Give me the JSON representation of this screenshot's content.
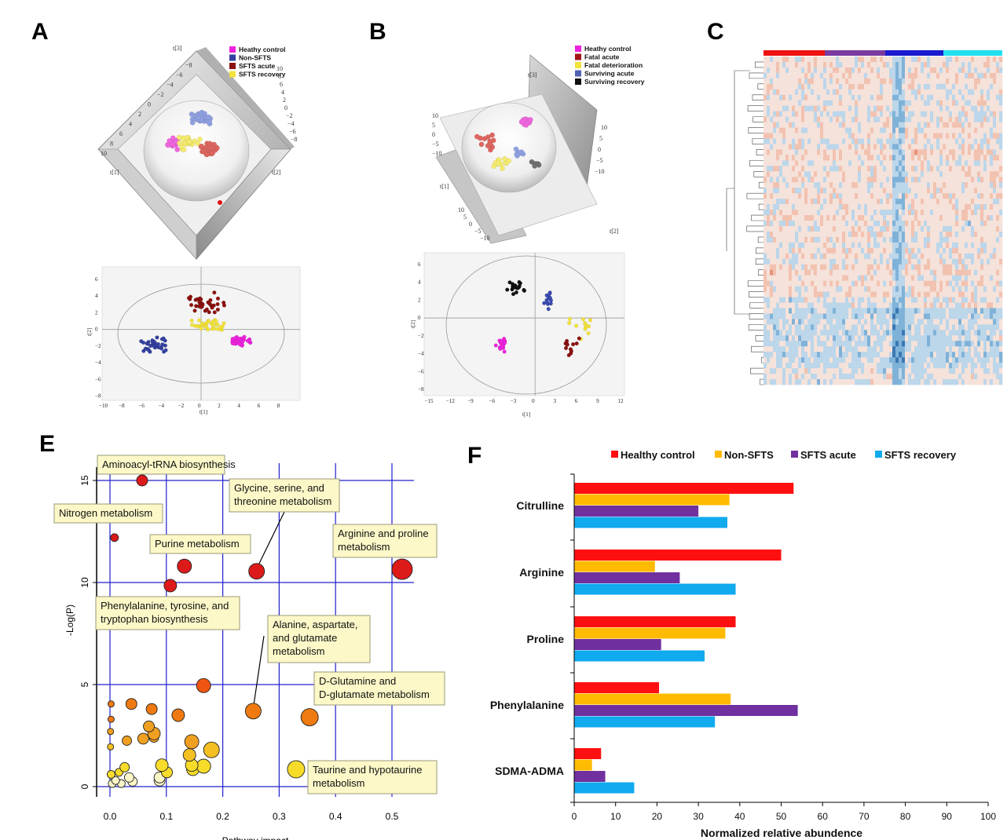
{
  "panel_labels": {
    "A": "A",
    "B": "B",
    "C": "C",
    "E": "E",
    "F": "F"
  },
  "colors": {
    "healthy": "#ee22dd",
    "nonsfts": "#3340a0",
    "acute": "#8c1010",
    "recovery": "#f2e23a",
    "black": "#111111",
    "f_healthy": "#ff1010",
    "f_non": "#ffbb00",
    "f_acute": "#7030a0",
    "f_recovery": "#10aaee",
    "e_grid": "#2020cc"
  },
  "panel_a": {
    "legend": [
      "Heathy control",
      "Non-SFTS",
      "SFTS acute",
      "SFTS recovery"
    ],
    "axis3d": {
      "t1": "t[1]",
      "t2": "t[2]",
      "t3": "t[3]"
    },
    "scatter": {
      "xticks": [
        "−10",
        "−8",
        "−6",
        "−4",
        "−2",
        "0",
        "2",
        "4",
        "6",
        "8"
      ],
      "yticks": [
        "6",
        "4",
        "2",
        "0",
        "−2",
        "−4",
        "−6",
        "−8"
      ],
      "xlabel": "t[1]",
      "ylabel": "t[2]"
    }
  },
  "panel_b": {
    "legend": [
      "Heathy control",
      "Fatal acute",
      "Fatal deterioration",
      "Surviving acute",
      "Surviving recovery"
    ],
    "axis3d": {
      "t1": "t[1]",
      "t2": "t[2]",
      "t3": "t[3]"
    },
    "scatter": {
      "xticks": [
        "−15",
        "−12",
        "−9",
        "−6",
        "−3",
        "0",
        "3",
        "6",
        "9",
        "12"
      ],
      "yticks": [
        "6",
        "4",
        "2",
        "0",
        "−2",
        "−4",
        "−6",
        "−8"
      ],
      "xlabel": "t[1]",
      "ylabel": "t[2]"
    }
  },
  "panel_c": {
    "group_bar_colors": [
      "#ee1111",
      "#7a3aa0",
      "#1a1ad0",
      "#22dfee"
    ]
  },
  "chart_data": [
    {
      "type": "scatter",
      "panel": "E",
      "xlabel": "Pathway impact",
      "ylabel": "-Log(P)",
      "xlim": [
        -0.02,
        0.55
      ],
      "ylim": [
        -0.7,
        16
      ],
      "xticks": [
        "0.0",
        "0.1",
        "0.2",
        "0.3",
        "0.4",
        "0.5"
      ],
      "yticks": [
        "0",
        "5",
        "10",
        "15"
      ],
      "points": [
        {
          "x": 0.057,
          "y": 15.0,
          "size": 7
        },
        {
          "x": 0.008,
          "y": 12.2,
          "size": 5
        },
        {
          "x": 0.132,
          "y": 10.8,
          "size": 9
        },
        {
          "x": 0.107,
          "y": 9.85,
          "size": 8
        },
        {
          "x": 0.26,
          "y": 10.55,
          "size": 10
        },
        {
          "x": 0.518,
          "y": 10.65,
          "size": 13
        },
        {
          "x": 0.166,
          "y": 4.95,
          "size": 9
        },
        {
          "x": 0.254,
          "y": 3.7,
          "size": 10
        },
        {
          "x": 0.354,
          "y": 3.4,
          "size": 11
        },
        {
          "x": 0.002,
          "y": 4.05,
          "size": 4
        },
        {
          "x": 0.038,
          "y": 4.05,
          "size": 7
        },
        {
          "x": 0.074,
          "y": 3.8,
          "size": 7
        },
        {
          "x": 0.121,
          "y": 3.5,
          "size": 8
        },
        {
          "x": 0.002,
          "y": 3.3,
          "size": 4
        },
        {
          "x": 0.069,
          "y": 2.95,
          "size": 7
        },
        {
          "x": 0.078,
          "y": 2.6,
          "size": 8
        },
        {
          "x": 0.059,
          "y": 2.35,
          "size": 7
        },
        {
          "x": 0.078,
          "y": 2.4,
          "size": 6
        },
        {
          "x": 0.001,
          "y": 2.7,
          "size": 4
        },
        {
          "x": 0.145,
          "y": 2.2,
          "size": 9
        },
        {
          "x": 0.18,
          "y": 1.8,
          "size": 10
        },
        {
          "x": 0.03,
          "y": 2.25,
          "size": 6
        },
        {
          "x": 0.141,
          "y": 1.55,
          "size": 8
        },
        {
          "x": 0.001,
          "y": 1.95,
          "size": 4
        },
        {
          "x": 0.092,
          "y": 1.05,
          "size": 8
        },
        {
          "x": 0.145,
          "y": 1.05,
          "size": 8
        },
        {
          "x": 0.166,
          "y": 1.0,
          "size": 9
        },
        {
          "x": 0.147,
          "y": 0.85,
          "size": 8
        },
        {
          "x": 0.026,
          "y": 0.95,
          "size": 6
        },
        {
          "x": 0.016,
          "y": 0.7,
          "size": 5
        },
        {
          "x": 0.101,
          "y": 0.7,
          "size": 7
        },
        {
          "x": 0.002,
          "y": 0.6,
          "size": 5
        },
        {
          "x": 0.33,
          "y": 0.85,
          "size": 11
        },
        {
          "x": 0.034,
          "y": 0.45,
          "size": 6
        },
        {
          "x": 0.088,
          "y": 0.45,
          "size": 7
        },
        {
          "x": 0.088,
          "y": 0.3,
          "size": 7
        },
        {
          "x": 0.01,
          "y": 0.3,
          "size": 5
        },
        {
          "x": 0.04,
          "y": 0.25,
          "size": 6
        },
        {
          "x": 0.004,
          "y": 0.15,
          "size": 5
        },
        {
          "x": 0.02,
          "y": 0.15,
          "size": 5
        }
      ],
      "annotations": [
        {
          "lines": [
            "Aminoacyl-tRNA biosynthesis"
          ]
        },
        {
          "lines": [
            "Nitrogen metabolism"
          ]
        },
        {
          "lines": [
            "Glycine, serine, and",
            "threonine metabolism"
          ]
        },
        {
          "lines": [
            "Purine metabolism"
          ]
        },
        {
          "lines": [
            "Arginine and proline",
            "metabolism"
          ]
        },
        {
          "lines": [
            "Phenylalanine, tyrosine, and",
            "tryptophan biosynthesis"
          ]
        },
        {
          "lines": [
            "Alanine, aspartate,",
            "and glutamate",
            "metabolism"
          ]
        },
        {
          "lines": [
            "D-Glutamine and",
            "D-glutamate metabolism"
          ]
        },
        {
          "lines": [
            "Taurine and hypotaurine",
            "metabolism"
          ]
        }
      ]
    },
    {
      "type": "bar",
      "panel": "F",
      "orientation": "horizontal",
      "categories": [
        "Citrulline",
        "Arginine",
        "Proline",
        "Phenylalanine",
        "SDMA-ADMA"
      ],
      "series": [
        {
          "name": "Healthy control",
          "values": [
            53,
            50,
            39,
            20.5,
            6.5
          ]
        },
        {
          "name": "Non-SFTS",
          "values": [
            37.5,
            19.5,
            36.5,
            37.8,
            4.3
          ]
        },
        {
          "name": "SFTS acute",
          "values": [
            30,
            25.5,
            21,
            54,
            7.5
          ]
        },
        {
          "name": "SFTS recovery",
          "values": [
            37,
            39,
            31.5,
            34,
            14.5
          ]
        }
      ],
      "xlim": [
        0,
        100
      ],
      "xticks": [
        "0",
        "10",
        "20",
        "30",
        "40",
        "50",
        "60",
        "70",
        "80",
        "90",
        "100"
      ],
      "xlabel": "Normalized relative abundence",
      "legend_position": "top"
    }
  ]
}
